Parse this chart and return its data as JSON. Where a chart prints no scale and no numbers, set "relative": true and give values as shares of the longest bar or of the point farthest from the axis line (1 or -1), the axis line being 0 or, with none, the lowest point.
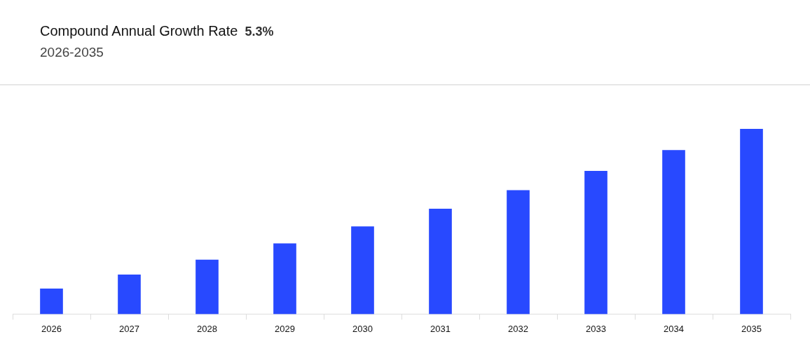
{
  "chart_data": {
    "type": "bar",
    "title": "Compound Annual Growth Rate",
    "subtitle": "2026-2035",
    "annotations": [
      "5.3%"
    ],
    "categories": [
      "2026",
      "2027",
      "2028",
      "2029",
      "2030",
      "2031",
      "2032",
      "2033",
      "2034",
      "2035"
    ],
    "values": [
      0.136,
      0.212,
      0.292,
      0.38,
      0.472,
      0.568,
      0.668,
      0.772,
      0.884,
      1
    ],
    "color": "#2849ff",
    "relative": true,
    "grid": false,
    "legend": false
  }
}
